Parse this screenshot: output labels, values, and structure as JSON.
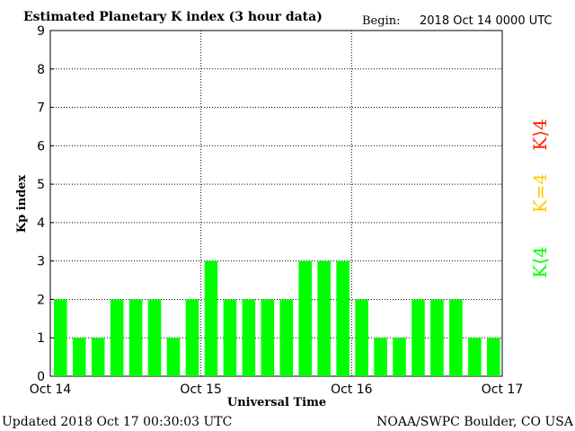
{
  "header": {
    "title": "Estimated Planetary K index (3 hour data)",
    "begin_label": "Begin:",
    "begin_value": "2018 Oct 14 0000 UTC"
  },
  "footer": {
    "updated": "Updated 2018 Oct 17 00:30:03 UTC",
    "source": "NOAA/SWPC Boulder, CO USA"
  },
  "legend": {
    "high": {
      "label": "K⟩4",
      "color": "#ff2200"
    },
    "equal": {
      "label": "K=4",
      "color": "#ffcc00"
    },
    "low": {
      "label": "K⟨4",
      "color": "#00ff00"
    }
  },
  "chart_data": {
    "type": "bar",
    "xlabel": "Universal Time",
    "ylabel": "Kp index",
    "ylim": [
      0,
      9
    ],
    "yticks": [
      "0",
      "1",
      "2",
      "3",
      "4",
      "5",
      "6",
      "7",
      "8",
      "9"
    ],
    "xticks": [
      "Oct 14",
      "Oct 15",
      "Oct 16",
      "Oct 17"
    ],
    "grid": true,
    "bar_color": "#00ff00",
    "values": [
      2,
      1,
      1,
      2,
      2,
      2,
      1,
      2,
      3,
      2,
      2,
      2,
      2,
      3,
      3,
      3,
      2,
      1,
      1,
      2,
      2,
      2,
      1,
      1
    ]
  }
}
